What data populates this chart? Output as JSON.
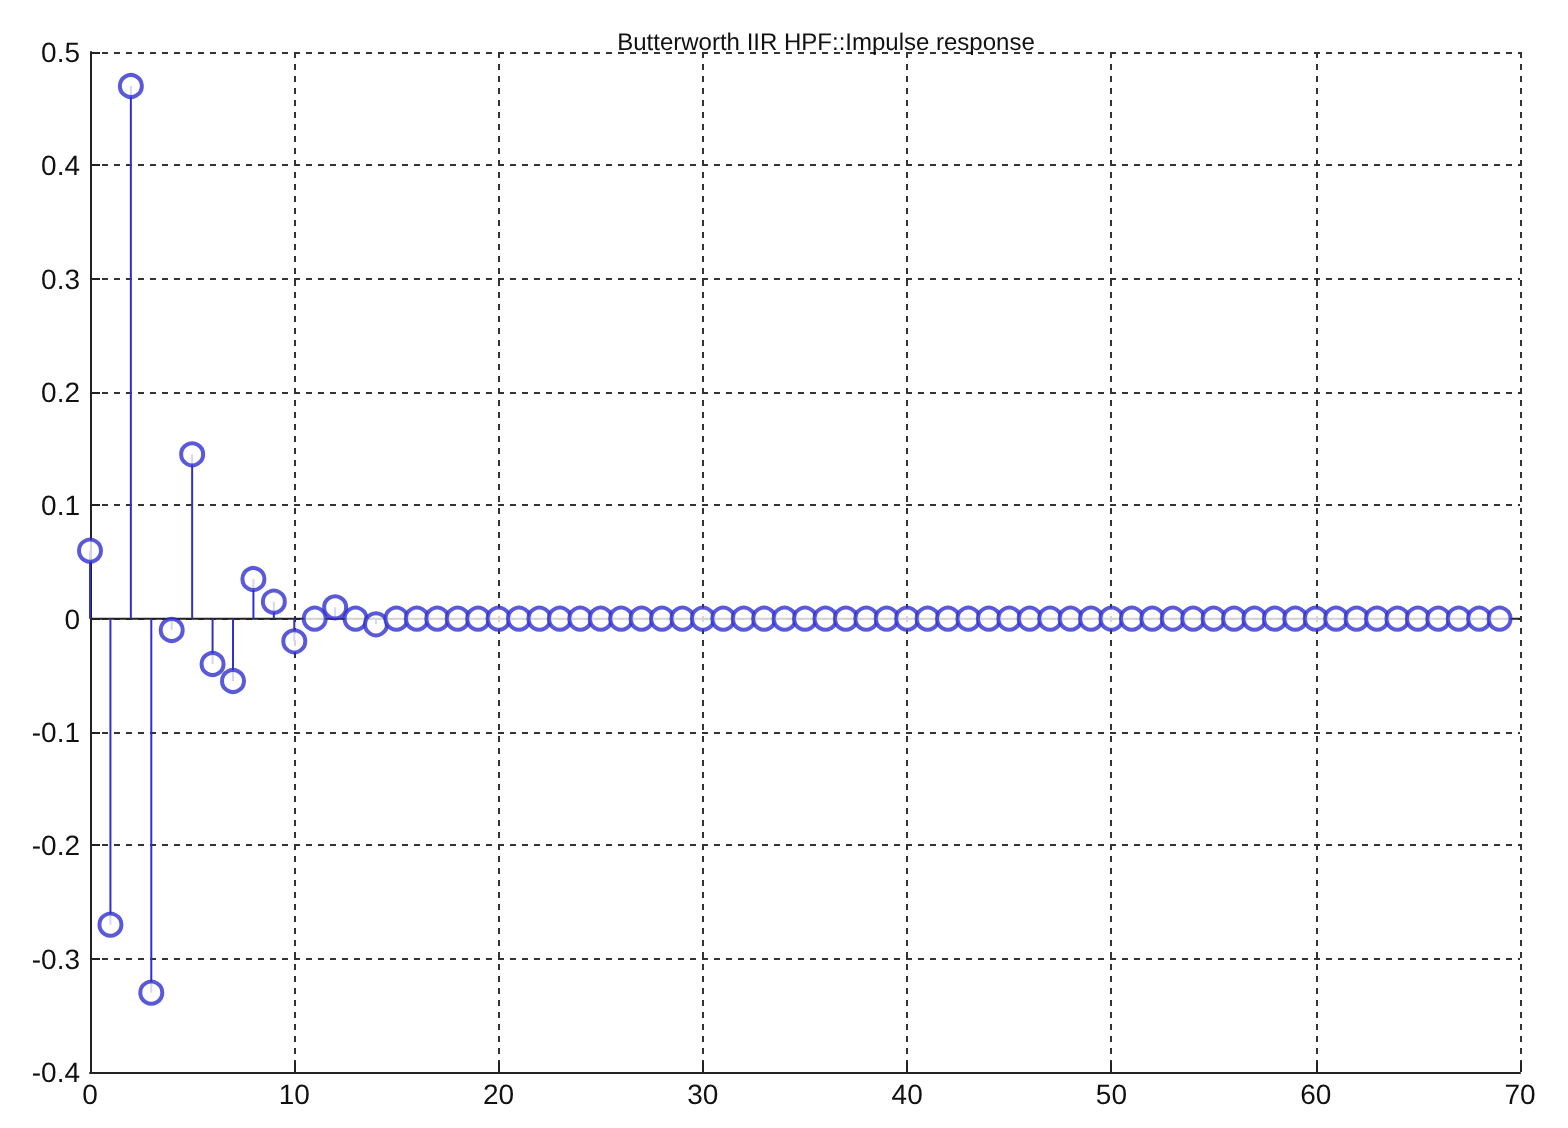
{
  "chart_data": {
    "type": "lollipop",
    "title": "Butterworth IIR HPF::Impulse response",
    "x": [
      0,
      1,
      2,
      3,
      4,
      5,
      6,
      7,
      8,
      9,
      10,
      11,
      12,
      13,
      14,
      15,
      16,
      17,
      18,
      19,
      20,
      21,
      22,
      23,
      24,
      25,
      26,
      27,
      28,
      29,
      30,
      31,
      32,
      33,
      34,
      35,
      36,
      37,
      38,
      39,
      40,
      41,
      42,
      43,
      44,
      45,
      46,
      47,
      48,
      49,
      50,
      51,
      52,
      53,
      54,
      55,
      56,
      57,
      58,
      59,
      60,
      61,
      62,
      63,
      64,
      65,
      66,
      67,
      68,
      69
    ],
    "values": [
      0.06,
      -0.27,
      0.47,
      -0.33,
      -0.01,
      0.145,
      -0.04,
      -0.055,
      0.035,
      0.015,
      -0.02,
      0,
      0.01,
      0,
      -0.005,
      0,
      0,
      0,
      0,
      0,
      0,
      0,
      0,
      0,
      0,
      0,
      0,
      0,
      0,
      0,
      0,
      0,
      0,
      0,
      0,
      0,
      0,
      0,
      0,
      0,
      0,
      0,
      0,
      0,
      0,
      0,
      0,
      0,
      0,
      0,
      0,
      0,
      0,
      0,
      0,
      0,
      0,
      0,
      0,
      0,
      0,
      0,
      0,
      0,
      0,
      0,
      0,
      0,
      0,
      0
    ],
    "color": "#3030d0",
    "marker": "circle",
    "xlim": [
      0,
      70
    ],
    "xticks": [
      0,
      10,
      20,
      30,
      40,
      50,
      60,
      70
    ],
    "ylim": [
      -0.4,
      0.5
    ],
    "yticks": [
      -0.4,
      -0.3,
      -0.2,
      -0.1,
      0,
      0.1,
      0.2,
      0.3,
      0.4,
      0.5
    ],
    "grid": true
  }
}
